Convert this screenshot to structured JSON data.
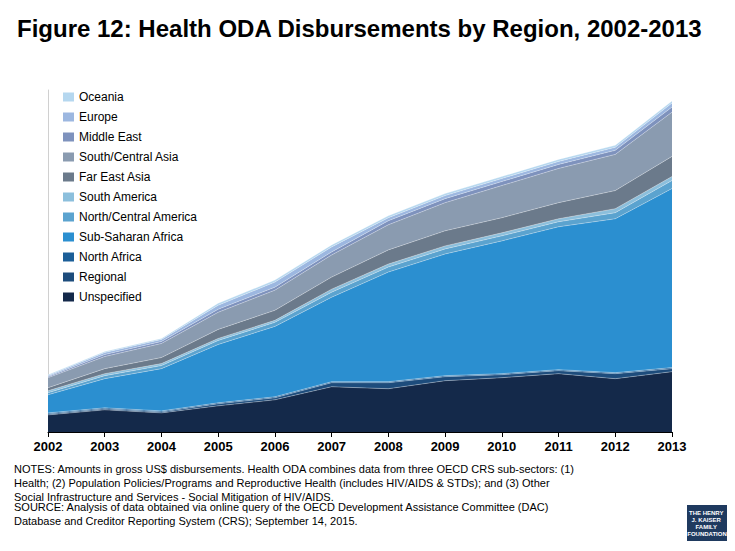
{
  "chart_data": {
    "type": "area",
    "title": "Figure 12: Health ODA Disbursements by Region, 2002-2013",
    "categories": [
      "2002",
      "2003",
      "2004",
      "2005",
      "2006",
      "2007",
      "2008",
      "2009",
      "2010",
      "2011",
      "2012",
      "2013"
    ],
    "series": [
      {
        "name": "Unspecified",
        "color": "#14294a",
        "values": [
          17,
          22,
          19,
          26,
          32,
          45,
          43,
          51,
          54,
          58,
          53,
          60
        ]
      },
      {
        "name": "Regional",
        "color": "#1d4c7c",
        "values": [
          1,
          1,
          1,
          2,
          2,
          4,
          6,
          4,
          3,
          3,
          5,
          3
        ]
      },
      {
        "name": "North Africa",
        "color": "#1b5e98",
        "values": [
          1,
          1,
          1,
          1,
          1,
          1,
          1,
          1,
          1,
          1,
          1,
          1
        ]
      },
      {
        "name": "Sub-Saharan Africa",
        "color": "#2b8fd0",
        "values": [
          18,
          29,
          42,
          58,
          70,
          84,
          109,
          121,
          132,
          142,
          153,
          178
        ]
      },
      {
        "name": "North/Central America",
        "color": "#5ba3cf",
        "values": [
          2,
          3,
          3,
          4,
          4,
          5,
          5,
          5,
          5,
          5,
          6,
          8
        ]
      },
      {
        "name": "South America",
        "color": "#8cbfdc",
        "values": [
          2,
          2,
          2,
          2,
          2,
          3,
          3,
          3,
          3,
          3,
          4,
          4
        ]
      },
      {
        "name": "Far East Asia",
        "color": "#6b7a8b",
        "values": [
          3,
          5,
          6,
          9,
          10,
          12,
          14,
          15,
          15,
          16,
          18,
          20
        ]
      },
      {
        "name": "South/Central Asia",
        "color": "#8a9bb0",
        "values": [
          10,
          12,
          14,
          17,
          20,
          22,
          25,
          28,
          32,
          34,
          36,
          44
        ]
      },
      {
        "name": "Middle East",
        "color": "#7e92bd",
        "values": [
          1,
          2,
          2,
          3,
          3,
          3,
          4,
          4,
          4,
          4,
          4,
          5
        ]
      },
      {
        "name": "Europe",
        "color": "#9cb7e0",
        "values": [
          1,
          2,
          2,
          4,
          5,
          5,
          3,
          3,
          3,
          3,
          3,
          4
        ]
      },
      {
        "name": "Oceania",
        "color": "#b5d7ef",
        "values": [
          1,
          1,
          1,
          2,
          2,
          2,
          2,
          2,
          2,
          2,
          2,
          2
        ]
      }
    ],
    "stacked": true,
    "ylim": [
      0,
      340
    ],
    "tick_labels": "x",
    "grid": false,
    "legend": "upper left",
    "notes": "NOTES: Amounts in gross US$ disbursements. Health ODA combines data from three OECD CRS sub-sectors: (1) Health; (2) Population Policies/Programs and Reproductive Health (includes HIV/AIDS & STDs); and (3) Other Social Infrastructure and Services - Social Mitigation of HIV/AIDS.",
    "source": "SOURCE: Analysis of data obtained via online query of the OECD Development Assistance Committee (DAC) Database and Creditor Reporting System (CRS); September 14, 2015.",
    "logo": "THE HENRY J. KAISER FAMILY FOUNDATION"
  }
}
